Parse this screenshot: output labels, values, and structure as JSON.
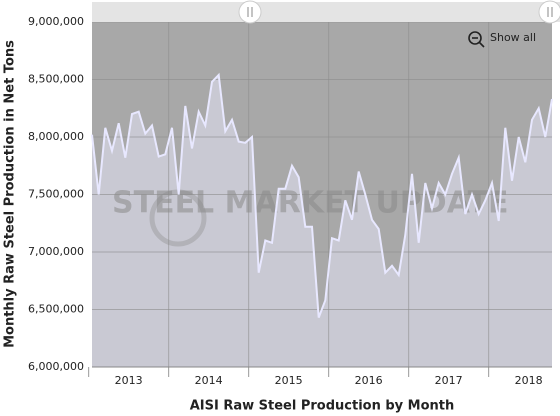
{
  "chart_data": {
    "type": "area",
    "x_axis_label": "AISI Raw Steel Production by Month",
    "y_axis_label": "Monthly Raw Steel Production in Net Tons",
    "watermark": "STEEL MARKET UPDATE",
    "button": "Show all",
    "categories": [
      null,
      null,
      null,
      null,
      null,
      "2013",
      null,
      null,
      null,
      null,
      null,
      null,
      null,
      null,
      null,
      null,
      null,
      "2014",
      null,
      null,
      null,
      null,
      null,
      null,
      null,
      null,
      null,
      null,
      null,
      "2015",
      null,
      null,
      null,
      null,
      null,
      null,
      null,
      null,
      null,
      null,
      null,
      "2016",
      null,
      null,
      null,
      null,
      null,
      null,
      null,
      null,
      null,
      null,
      null,
      "2017",
      null,
      null,
      null,
      null,
      null,
      null,
      null,
      null,
      null,
      null,
      null,
      "2018",
      null,
      null,
      null,
      null
    ],
    "values": [
      8020000,
      7500000,
      8080000,
      7880000,
      8120000,
      7820000,
      8200000,
      8220000,
      8030000,
      8100000,
      7830000,
      7850000,
      8080000,
      7500000,
      8270000,
      7900000,
      8220000,
      8100000,
      8480000,
      8540000,
      8050000,
      8150000,
      7960000,
      7950000,
      8000000,
      6820000,
      7100000,
      7080000,
      7550000,
      7550000,
      7750000,
      7650000,
      7220000,
      7220000,
      6430000,
      6580000,
      7120000,
      7100000,
      7450000,
      7280000,
      7700000,
      7500000,
      7280000,
      7200000,
      6820000,
      6880000,
      6800000,
      7150000,
      7680000,
      7080000,
      7600000,
      7380000,
      7600000,
      7500000,
      7680000,
      7820000,
      7330000,
      7500000,
      7330000,
      7450000,
      7600000,
      7270000,
      8080000,
      7620000,
      8000000,
      7780000,
      8150000,
      8250000,
      8000000,
      8330000
    ],
    "color": "#e8e8ff",
    "area_color": "#c9c9d3",
    "ylim": [
      6000000,
      9000000
    ],
    "yticks": [
      {
        "value": 6000000,
        "label": "6,000,000"
      },
      {
        "value": 6500000,
        "label": "6,500,000"
      },
      {
        "value": 7000000,
        "label": "7,000,000"
      },
      {
        "value": 7500000,
        "label": "7,500,000"
      },
      {
        "value": 8000000,
        "label": "8,000,000"
      },
      {
        "value": 8500000,
        "label": "8,500,000"
      },
      {
        "value": 9000000,
        "label": "9,000,000"
      }
    ],
    "grid": true
  }
}
